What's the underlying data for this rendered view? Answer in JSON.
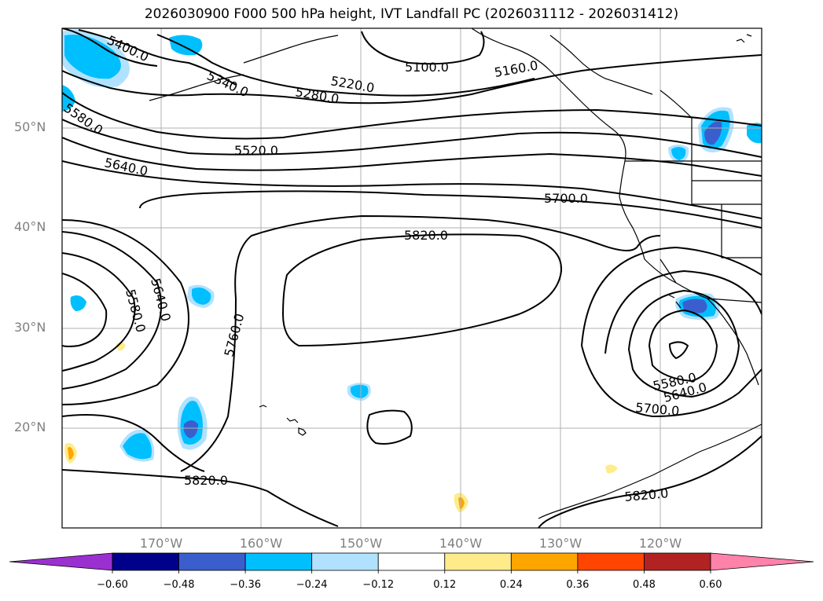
{
  "title": "2026030900 F000 500 hPa height, IVT Landfall PC (2026031112 - 2026031412)",
  "lat_labels": [
    "50°N",
    "40°N",
    "30°N",
    "20°N"
  ],
  "lon_labels": [
    "170°W",
    "160°W",
    "150°W",
    "140°W",
    "130°W",
    "120°W"
  ],
  "contour_labels": [
    "5400.0",
    "5340.0",
    "5220.0",
    "5280.0",
    "5100.0",
    "5160.0",
    "5580.0",
    "5520.0",
    "5640.0",
    "5700.0",
    "5820.0",
    "5640.0",
    "5580.0",
    "5760.0",
    "5580.0",
    "5640.0",
    "5700.0",
    "5820.0",
    "5820.0"
  ],
  "colorbar": {
    "ticks": [
      "−0.60",
      "−0.48",
      "−0.36",
      "−0.24",
      "−0.12",
      "0.12",
      "0.24",
      "0.36",
      "0.48",
      "0.60"
    ],
    "colors": [
      "#9b30d0",
      "#00008b",
      "#3a5fcd",
      "#00bfff",
      "#b0e2ff",
      "#ffffff",
      "#ffeb8a",
      "#ffa500",
      "#ff4500",
      "#b22222",
      "#ff82ab"
    ]
  }
}
